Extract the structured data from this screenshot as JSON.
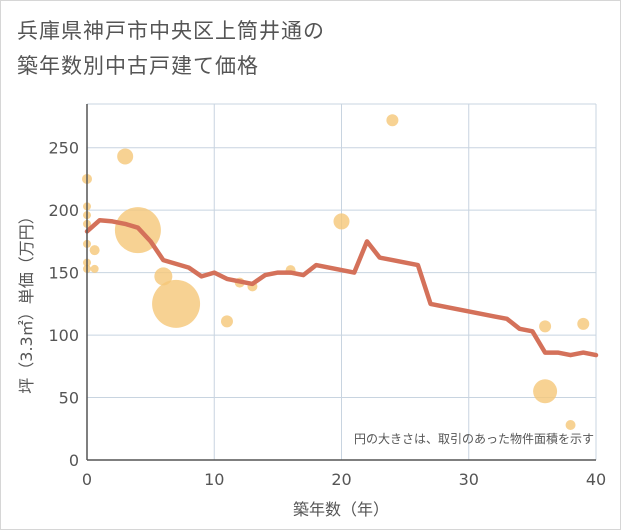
{
  "title_lines": [
    "兵庫県神戸市中央区上筒井通の",
    "築年数別中古戸建て価格"
  ],
  "chart_data": {
    "type": "scatter+line",
    "xlabel": "築年数（年）",
    "ylabel": "坪（3.3㎡）単価（万円）",
    "xlim": [
      0,
      40
    ],
    "ylim": [
      0,
      285
    ],
    "xticks": [
      0,
      10,
      20,
      30,
      40
    ],
    "yticks": [
      0,
      50,
      100,
      150,
      200,
      250
    ],
    "grid": true,
    "annotation": "円の大きさは、取引のあった物件面積を示す",
    "colors": {
      "line": "#d4715a",
      "bubble": "#f5c778",
      "grid": "#c8d4e0",
      "axis": "#555555"
    },
    "trend_line": {
      "x": [
        0,
        1,
        2,
        3,
        4,
        5,
        6,
        7,
        8,
        9,
        10,
        11,
        12,
        13,
        14,
        15,
        16,
        17,
        18,
        19,
        20,
        21,
        22,
        23,
        24,
        25,
        26,
        27,
        28,
        29,
        30,
        31,
        32,
        33,
        34,
        35,
        36,
        37,
        38,
        39,
        40
      ],
      "y": [
        183,
        192,
        191,
        189,
        186,
        175,
        160,
        157,
        154,
        147,
        150,
        145,
        143,
        141,
        148,
        150,
        150,
        148,
        156,
        154,
        152,
        150,
        175,
        162,
        160,
        158,
        156,
        125,
        123,
        121,
        119,
        117,
        115,
        113,
        105,
        103,
        86,
        86,
        84,
        86,
        84
      ]
    },
    "bubbles": [
      {
        "x": 0,
        "y": 225,
        "size": 5
      },
      {
        "x": 0,
        "y": 203,
        "size": 4
      },
      {
        "x": 0,
        "y": 196,
        "size": 4
      },
      {
        "x": 0,
        "y": 189,
        "size": 4
      },
      {
        "x": 0,
        "y": 173,
        "size": 4
      },
      {
        "x": 0,
        "y": 158,
        "size": 4
      },
      {
        "x": 0,
        "y": 153,
        "size": 4
      },
      {
        "x": 0.6,
        "y": 168,
        "size": 5
      },
      {
        "x": 0.6,
        "y": 153,
        "size": 4
      },
      {
        "x": 3,
        "y": 243,
        "size": 8
      },
      {
        "x": 4,
        "y": 184,
        "size": 23
      },
      {
        "x": 6,
        "y": 147,
        "size": 9
      },
      {
        "x": 7,
        "y": 125,
        "size": 24
      },
      {
        "x": 11,
        "y": 111,
        "size": 6
      },
      {
        "x": 12,
        "y": 142,
        "size": 5
      },
      {
        "x": 13,
        "y": 139,
        "size": 5
      },
      {
        "x": 16,
        "y": 152,
        "size": 5
      },
      {
        "x": 20,
        "y": 191,
        "size": 8
      },
      {
        "x": 24,
        "y": 272,
        "size": 6
      },
      {
        "x": 36,
        "y": 107,
        "size": 6
      },
      {
        "x": 36,
        "y": 55,
        "size": 12
      },
      {
        "x": 38,
        "y": 28,
        "size": 5
      },
      {
        "x": 39,
        "y": 109,
        "size": 6
      }
    ]
  }
}
